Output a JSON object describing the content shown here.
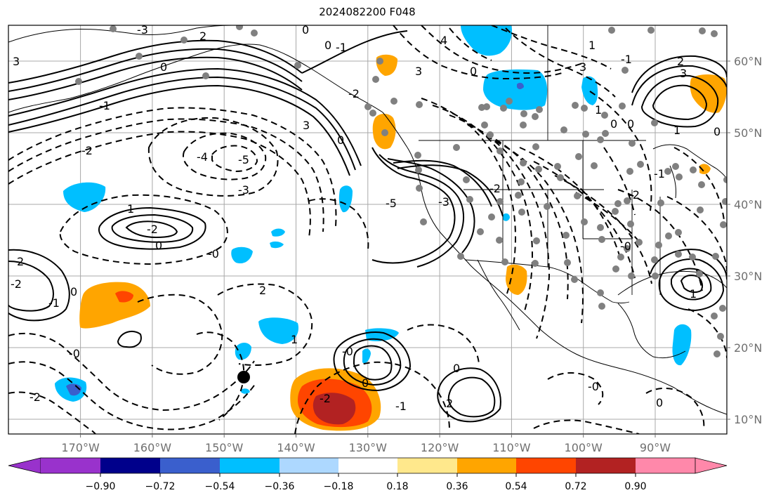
{
  "title": "2024082200 F048",
  "map": {
    "projection": "PlateCarree",
    "lon_range": [
      -180,
      -80
    ],
    "lat_range": [
      7,
      64
    ],
    "lon_ticks": [
      "170°W",
      "160°W",
      "150°W",
      "140°W",
      "130°W",
      "120°W",
      "110°W",
      "100°W",
      "90°W"
    ],
    "lat_ticks": [
      "60°N",
      "50°N",
      "40°N",
      "30°N",
      "20°N",
      "10°N"
    ],
    "gridlines": true,
    "contour_labels": [
      "3",
      "-3",
      "2",
      "0",
      "-1",
      "-2",
      "-4",
      "-5",
      "-3",
      "1",
      "-2",
      "0",
      "-0",
      "2",
      "-2",
      "0",
      "-1",
      "-0",
      "-2",
      "2",
      "1",
      "-0",
      "0",
      "-2",
      "-5",
      "0",
      "3",
      "0",
      "-1",
      "-2",
      "0",
      "-1",
      "3",
      "4",
      "-3",
      "0",
      "-2",
      "0",
      "2",
      "3",
      "1",
      "1",
      "0",
      "-1",
      "-2",
      "-0",
      "1",
      "2",
      "0",
      "0",
      "-1",
      "-0",
      "3",
      "0",
      "1"
    ]
  },
  "colorbar": {
    "ticks": [
      "−0.90",
      "−0.72",
      "−0.54",
      "−0.36",
      "−0.18",
      "0.18",
      "0.36",
      "0.54",
      "0.72",
      "0.90"
    ],
    "colors": [
      "#9932cc",
      "#00008b",
      "#3a5fcd",
      "#00bfff",
      "#add8ff",
      "#ffffff",
      "#ffe88c",
      "#ffa500",
      "#ff4500",
      "#b22222",
      "#ff88aa"
    ],
    "extend": "both"
  }
}
